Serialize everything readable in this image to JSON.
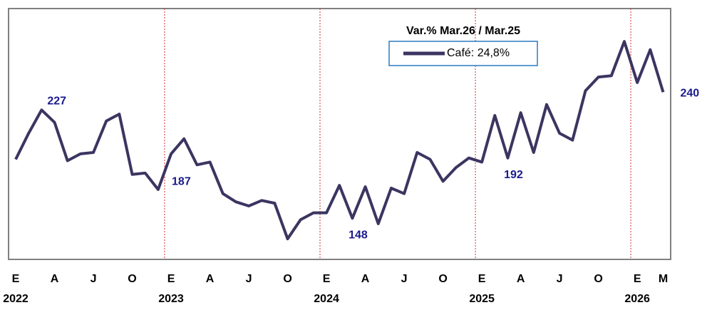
{
  "chart_data": {
    "type": "line",
    "legend_title": "Var.% Mar.26 / Mar.25",
    "categories": [
      "E",
      null,
      null,
      "A",
      null,
      null,
      "J",
      null,
      null,
      "O",
      null,
      null,
      "E",
      null,
      null,
      "A",
      null,
      null,
      "J",
      null,
      null,
      "O",
      null,
      null,
      "E",
      null,
      null,
      "A",
      null,
      null,
      "J",
      null,
      null,
      "O",
      null,
      null,
      "E",
      null,
      null,
      "A",
      null,
      null,
      "J",
      null,
      null,
      "O",
      null,
      null,
      "E",
      null,
      "M"
    ],
    "years": [
      "2022",
      "2023",
      "2024",
      "2025",
      "2026"
    ],
    "series": [
      {
        "name": "Café: 24,8%",
        "color": "#3b3561",
        "values": [
          191,
          210,
          227,
          218,
          190,
          195,
          196,
          219,
          224,
          180,
          181,
          169,
          195,
          206,
          187,
          189,
          166,
          160,
          157,
          161,
          159,
          133,
          147,
          152,
          152,
          172,
          148,
          171,
          144,
          170,
          166,
          196,
          191,
          175,
          185,
          192,
          189,
          223,
          192,
          225,
          196,
          231,
          210,
          205,
          241,
          251,
          252,
          277,
          247,
          271,
          240
        ],
        "value_labels": [
          null,
          null,
          "227",
          null,
          null,
          null,
          null,
          null,
          null,
          null,
          null,
          null,
          null,
          null,
          "187",
          null,
          null,
          null,
          null,
          null,
          null,
          null,
          null,
          null,
          null,
          null,
          "148",
          null,
          null,
          null,
          null,
          null,
          null,
          null,
          null,
          null,
          null,
          null,
          "192",
          null,
          null,
          null,
          null,
          null,
          null,
          null,
          null,
          null,
          null,
          null,
          "240"
        ]
      }
    ],
    "ylim": [
      118,
      301
    ]
  }
}
